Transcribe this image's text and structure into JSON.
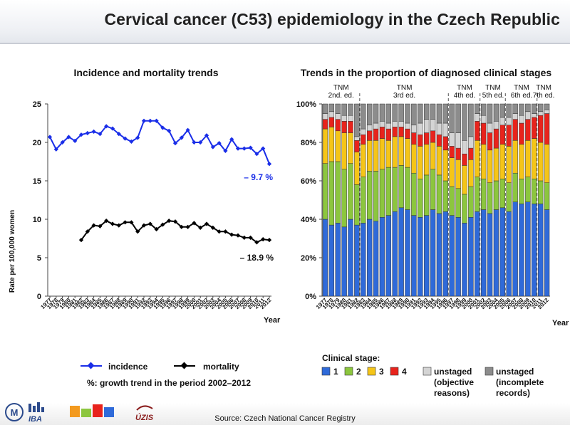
{
  "page": {
    "title": "Cervical cancer (C53) epidemiology in the Czech Republic",
    "source": "Source: Czech National Cancer Registry",
    "logos": [
      "IBA",
      "ÚZIS"
    ]
  },
  "colors": {
    "incidence": "#1a2ee8",
    "mortality": "#000000",
    "stage1": "#2f6ad9",
    "stage2": "#8cc63e",
    "stage3": "#f5c518",
    "stage4": "#e8231c",
    "unstaged_objective": "#d4d4d4",
    "unstaged_incomplete": "#8c8c8c"
  },
  "chart_data": [
    {
      "type": "line",
      "title": "Incidence and mortality trends",
      "ylabel": "Rate per 100,000 women",
      "xlabel": "Year",
      "ylim": [
        0,
        25
      ],
      "yticks": [
        "0",
        "5",
        "10",
        "15",
        "20",
        "25"
      ],
      "x": [
        "1977",
        "1978",
        "1979",
        "1980",
        "1981",
        "1982",
        "1983",
        "1984",
        "1985",
        "1986",
        "1987",
        "1988",
        "1989",
        "1990",
        "1991",
        "1992",
        "1993",
        "1994",
        "1995",
        "1996",
        "1997",
        "1998",
        "1999",
        "2000",
        "2001",
        "2002",
        "2003",
        "2004",
        "2005",
        "2006",
        "2007",
        "2008",
        "2009",
        "2010",
        "2011",
        "2012"
      ],
      "series": [
        {
          "name": "incidence",
          "values": [
            20.7,
            19.1,
            20.0,
            20.7,
            20.2,
            21.0,
            21.2,
            21.4,
            21.1,
            22.1,
            21.8,
            21.1,
            20.5,
            20.1,
            20.6,
            22.8,
            22.8,
            22.8,
            21.9,
            21.5,
            19.9,
            20.6,
            21.6,
            20.0,
            20.0,
            20.9,
            19.4,
            19.9,
            18.9,
            20.4,
            19.2,
            19.2,
            19.3,
            18.5,
            19.2,
            17.2
          ]
        },
        {
          "name": "mortality",
          "values": [
            null,
            null,
            null,
            null,
            null,
            7.3,
            8.4,
            9.2,
            9.1,
            9.8,
            9.4,
            9.2,
            9.6,
            9.6,
            8.4,
            9.2,
            9.4,
            8.7,
            9.3,
            9.8,
            9.7,
            9.0,
            9.0,
            9.5,
            8.9,
            9.4,
            8.9,
            8.4,
            8.4,
            8.0,
            7.9,
            7.6,
            7.6,
            7.0,
            7.4,
            7.3
          ]
        }
      ],
      "annotations": [
        {
          "text": "– 9.7 %",
          "series": "incidence"
        },
        {
          "text": "– 18.9 %",
          "series": "mortality"
        }
      ],
      "legend": {
        "position": "bottom",
        "items": [
          "incidence",
          "mortality"
        ]
      },
      "note": "%: growth trend in the period 2002–2012",
      "grid": false
    },
    {
      "type": "bar",
      "stacked": true,
      "title": "Trends in the proportion of diagnosed clinical stages",
      "xlabel": "Year",
      "ylim": [
        0,
        100
      ],
      "yticks": [
        "0%",
        "20%",
        "40%",
        "60%",
        "80%",
        "100%"
      ],
      "categories": [
        "1977",
        "1978",
        "1979",
        "1980",
        "1981",
        "1982",
        "1983",
        "1984",
        "1985",
        "1986",
        "1987",
        "1988",
        "1989",
        "1990",
        "1991",
        "1992",
        "1993",
        "1994",
        "1995",
        "1996",
        "1997",
        "1998",
        "1999",
        "2000",
        "2001",
        "2002",
        "2003",
        "2004",
        "2005",
        "2006",
        "2007",
        "2008",
        "2009",
        "2010",
        "2011",
        "2012"
      ],
      "series": [
        {
          "name": "1",
          "values": [
            40,
            37,
            38,
            36,
            40,
            37,
            38,
            40,
            39,
            41,
            42,
            44,
            46,
            45,
            42,
            41,
            42,
            45,
            43,
            44,
            42,
            41,
            38,
            41,
            44,
            45,
            43,
            45,
            46,
            44,
            49,
            48,
            49,
            48,
            48,
            45
          ]
        },
        {
          "name": "2",
          "values": [
            29,
            33,
            32,
            30,
            29,
            21,
            24,
            25,
            26,
            25,
            25,
            23,
            22,
            22,
            22,
            20,
            21,
            21,
            20,
            16,
            15,
            15,
            15,
            16,
            18,
            16,
            16,
            15,
            15,
            15,
            15,
            13,
            13,
            13,
            12,
            14
          ]
        },
        {
          "name": "3",
          "values": [
            18,
            18,
            16,
            19,
            16,
            17,
            17,
            16,
            16,
            16,
            14,
            16,
            15,
            15,
            15,
            17,
            16,
            14,
            15,
            16,
            15,
            15,
            15,
            14,
            19,
            18,
            17,
            17,
            18,
            19,
            17,
            18,
            19,
            21,
            20,
            20
          ]
        },
        {
          "name": "4",
          "values": [
            5,
            5,
            6,
            6,
            6,
            6,
            5,
            5,
            6,
            6,
            6,
            5,
            5,
            5,
            6,
            6,
            6,
            6,
            6,
            7,
            6,
            6,
            6,
            6,
            10,
            11,
            9,
            10,
            10,
            11,
            11,
            11,
            11,
            11,
            14,
            16
          ]
        },
        {
          "name": "unstaged (objective reasons)",
          "values": [
            3,
            3,
            3,
            3,
            3,
            2,
            3,
            3,
            3,
            3,
            3,
            3,
            3,
            3,
            4,
            6,
            7,
            6,
            6,
            7,
            7,
            8,
            7,
            6,
            4,
            4,
            5,
            4,
            4,
            4,
            3,
            4,
            4,
            2,
            2,
            2
          ]
        },
        {
          "name": "unstaged (incomplete records)",
          "values": [
            5,
            4,
            5,
            6,
            6,
            17,
            13,
            11,
            10,
            9,
            10,
            9,
            9,
            10,
            11,
            10,
            8,
            8,
            10,
            10,
            15,
            15,
            19,
            17,
            5,
            6,
            10,
            9,
            7,
            7,
            5,
            6,
            4,
            5,
            4,
            3
          ]
        }
      ],
      "editions": [
        {
          "label": "TNM\n2nd. ed.",
          "start": "1977"
        },
        {
          "label": "TNM\n3rd ed.",
          "start": "1983"
        },
        {
          "label": "TNM\n4th ed.",
          "start": "1997"
        },
        {
          "label": "TNM\n5th ed.",
          "start": "2002"
        },
        {
          "label": "TNM\n6th ed.",
          "start": "2006"
        },
        {
          "label": "TNM\n7th ed.",
          "start": "2011"
        }
      ],
      "legend": {
        "position": "bottom",
        "title": "Clinical stage:"
      },
      "grid": false
    }
  ]
}
